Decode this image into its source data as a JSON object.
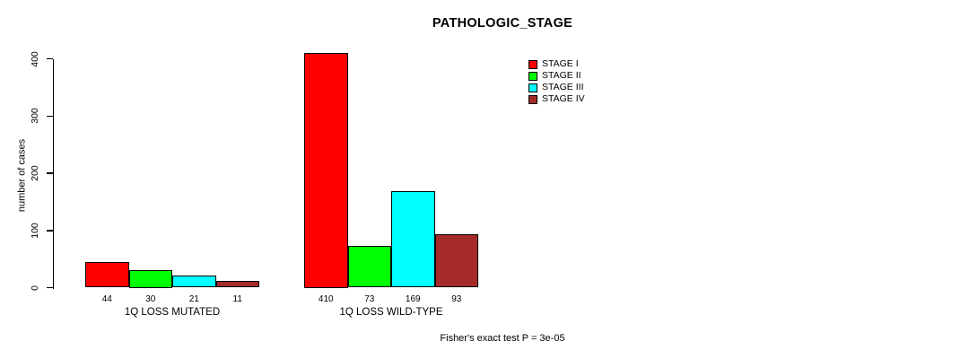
{
  "chart_data": {
    "type": "bar",
    "title": "PATHOLOGIC_STAGE",
    "ylabel": "number of cases",
    "xlabel": "",
    "ylim": [
      0,
      410
    ],
    "yticks": [
      0,
      100,
      200,
      300,
      400
    ],
    "grid": false,
    "legend_position": "top-right",
    "annotation": "Fisher's exact test P = 3e-05",
    "groups": [
      "1Q LOSS MUTATED",
      "1Q LOSS WILD-TYPE"
    ],
    "series": [
      {
        "name": "STAGE I",
        "color": "#FF0000",
        "values": [
          44,
          410
        ]
      },
      {
        "name": "STAGE II",
        "color": "#00FF00",
        "values": [
          30,
          73
        ]
      },
      {
        "name": "STAGE III",
        "color": "#00FFFF",
        "values": [
          21,
          169
        ]
      },
      {
        "name": "STAGE IV",
        "color": "#A52A2A",
        "values": [
          11,
          93
        ]
      }
    ]
  }
}
